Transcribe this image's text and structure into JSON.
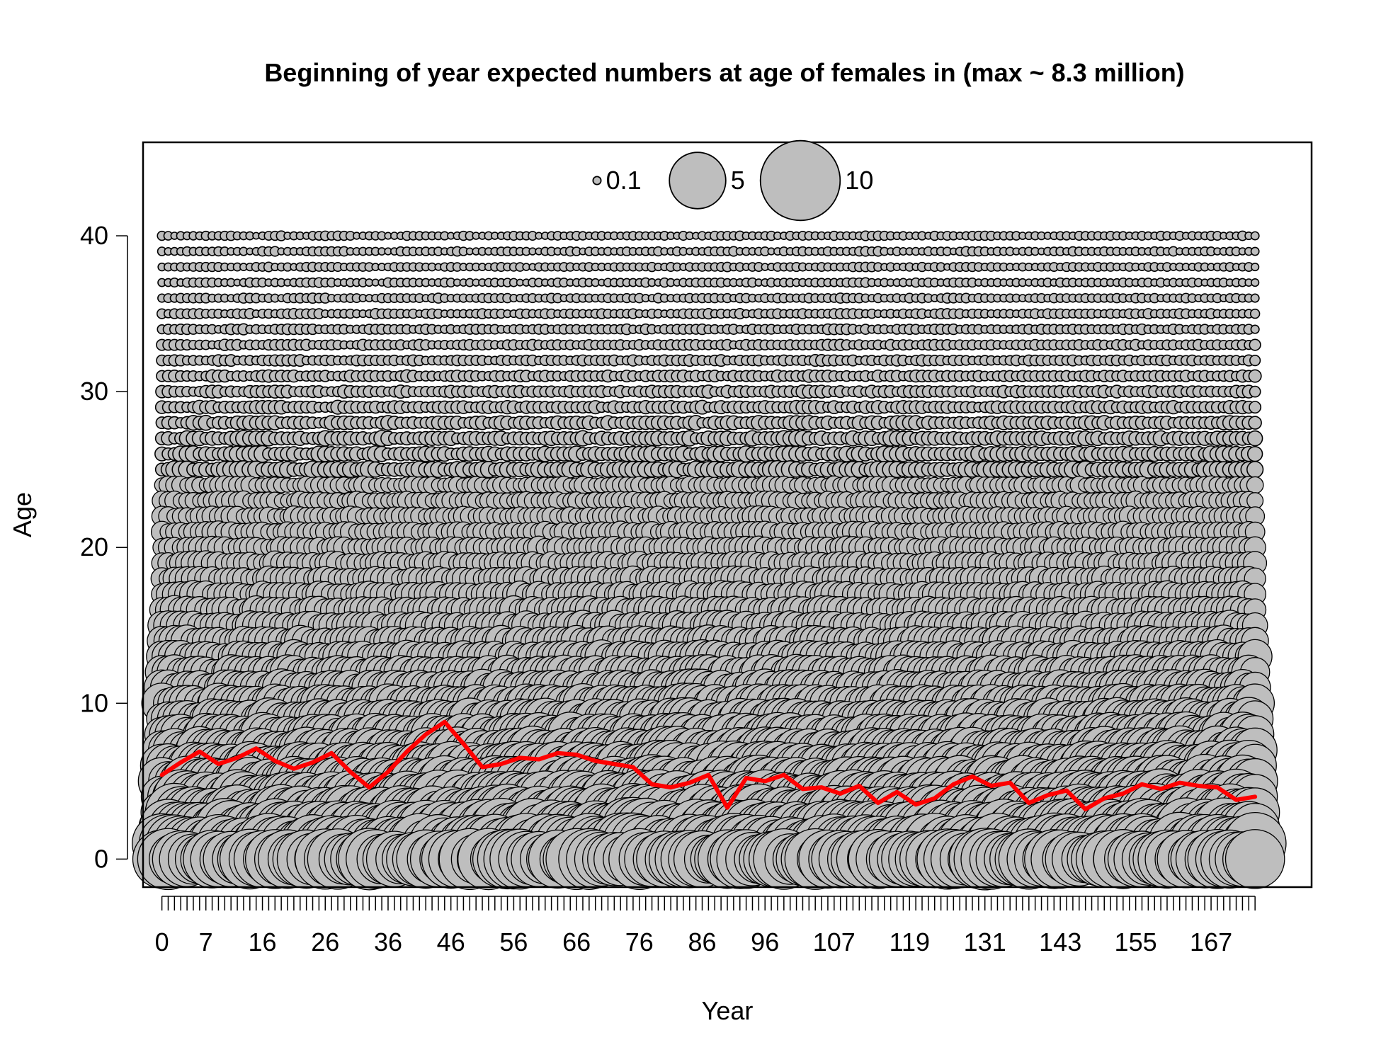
{
  "chart_data": {
    "type": "bubble",
    "title": "Beginning of year expected numbers at age of females in (max ~ 8.3 million)",
    "xlabel": "Year",
    "ylabel": "Age",
    "xlim": [
      -3,
      183
    ],
    "ylim": [
      -1.8,
      46
    ],
    "x_tick_labels": [
      0,
      7,
      16,
      26,
      36,
      46,
      56,
      66,
      76,
      86,
      96,
      107,
      119,
      131,
      143,
      155,
      167
    ],
    "y_ticks": [
      0,
      10,
      20,
      30,
      40
    ],
    "years": {
      "first": 0,
      "last": 174
    },
    "ages": {
      "first": 0,
      "last": 40
    },
    "legend": {
      "placement": "top-center",
      "entries": [
        {
          "label": "0.1",
          "value": 0.1
        },
        {
          "label": "5",
          "value": 5
        },
        {
          "label": "10",
          "value": 10
        }
      ]
    },
    "bubble_fill": "#bebebe",
    "bubble_stroke": "#000000",
    "mean_age_line": {
      "color": "#ff0000",
      "x": [
        0,
        3,
        6,
        9,
        12,
        15,
        18,
        21,
        24,
        27,
        30,
        33,
        36,
        39,
        42,
        45,
        48,
        51,
        54,
        57,
        60,
        63,
        66,
        69,
        72,
        75,
        78,
        81,
        84,
        87,
        90,
        93,
        96,
        99,
        102,
        105,
        108,
        111,
        114,
        117,
        120,
        123,
        126,
        129,
        132,
        135,
        138,
        141,
        144,
        147,
        150,
        153,
        156,
        159,
        162,
        165,
        168,
        171,
        174
      ],
      "y": [
        5.4,
        6.2,
        6.9,
        6.1,
        6.5,
        7.1,
        6.3,
        5.8,
        6.2,
        6.8,
        5.6,
        4.6,
        5.6,
        6.9,
        8.0,
        8.8,
        7.4,
        5.9,
        6.1,
        6.5,
        6.4,
        6.8,
        6.7,
        6.3,
        6.1,
        5.9,
        4.8,
        4.6,
        4.9,
        5.4,
        3.3,
        5.2,
        5.0,
        5.4,
        4.5,
        4.6,
        4.2,
        4.7,
        3.6,
        4.3,
        3.5,
        3.9,
        4.8,
        5.3,
        4.7,
        4.9,
        3.6,
        4.1,
        4.4,
        3.2,
        3.9,
        4.2,
        4.8,
        4.5,
        4.9,
        4.7,
        4.6,
        3.8,
        4.0
      ]
    },
    "bubble_size_by_age": [
      4.6,
      4.3,
      4.0,
      3.7,
      3.4,
      3.1,
      2.8,
      2.5,
      2.2,
      2.0,
      1.8,
      1.6,
      1.4,
      1.25,
      1.1,
      1.0,
      0.9,
      0.8,
      0.72,
      0.65,
      0.58,
      0.52,
      0.47,
      0.42,
      0.38,
      0.34,
      0.3,
      0.27,
      0.24,
      0.21,
      0.19,
      0.17,
      0.15,
      0.14,
      0.13,
      0.12,
      0.11,
      0.1,
      0.1,
      0.1,
      0.1
    ]
  }
}
